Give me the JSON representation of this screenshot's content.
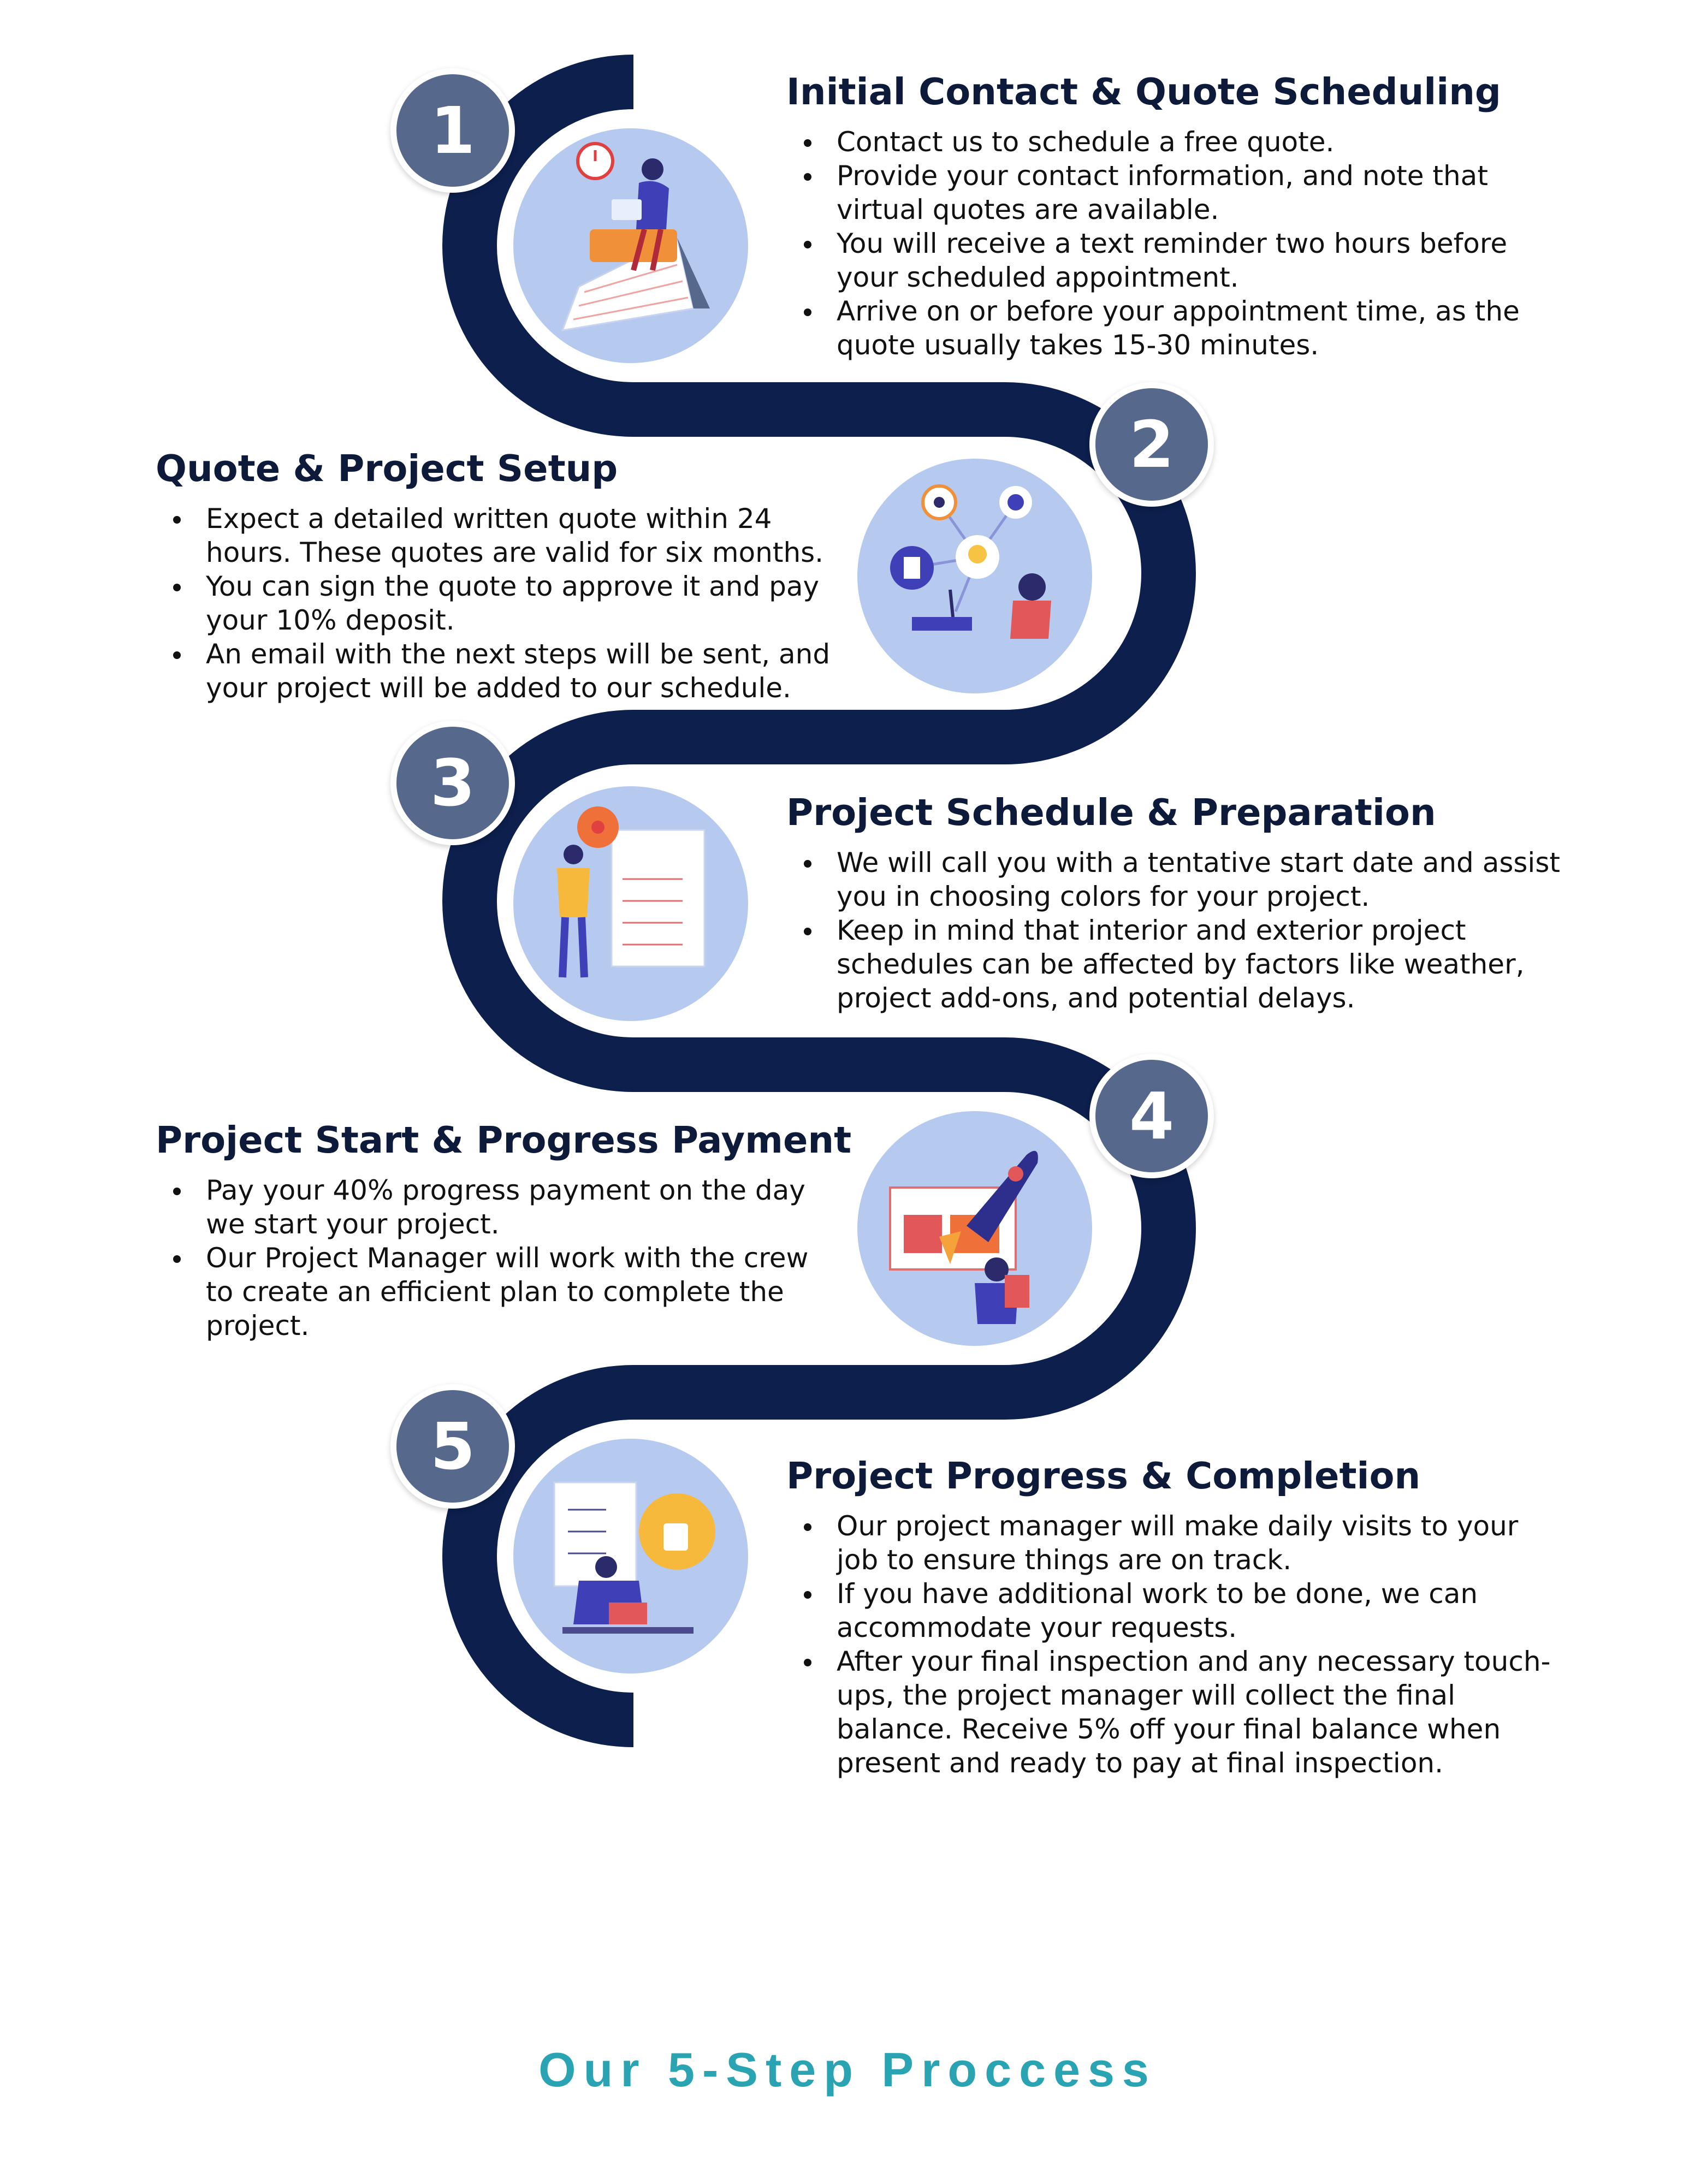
{
  "steps": [
    {
      "number": "1",
      "title": "Initial Contact & Quote Scheduling",
      "bullets": [
        "Contact us to schedule a free quote.",
        "Provide your contact information, and note that virtual quotes are available.",
        "You will receive a text reminder two hours before your scheduled appointment.",
        "Arrive on or before your appointment time, as the quote usually takes 15-30 minutes."
      ]
    },
    {
      "number": "2",
      "title": "Quote & Project Setup",
      "bullets": [
        "Expect a detailed written quote within 24 hours. These quotes are valid for six months.",
        "You can sign the quote to approve it and pay your 10% deposit.",
        "An email with the next steps will be sent, and your project will be added to our schedule."
      ]
    },
    {
      "number": "3",
      "title": "Project Schedule & Preparation",
      "bullets": [
        "We will call you with a tentative start date and assist you in choosing colors for your project.",
        "Keep in mind that interior and exterior project schedules can be affected by factors like weather, project add-ons, and potential delays."
      ]
    },
    {
      "number": "4",
      "title": "Project Start & Progress Payment",
      "bullets": [
        "Pay your 40% progress payment on the day we start your project.",
        "Our Project Manager will work with the crew to create an efficient plan to complete the project."
      ]
    },
    {
      "number": "5",
      "title": "Project Progress & Completion",
      "bullets": [
        "Our project manager will make daily visits to your job to ensure things are on track.",
        "If you have additional work to be done, we can accommodate your requests.",
        "After your final inspection and any necessary touch-ups, the project manager will collect the final balance. Receive 5% off your final balance when present and ready to pay at final inspection."
      ]
    }
  ],
  "footer_title": "Our 5-Step Proccess",
  "colors": {
    "path": "#0c1f4d",
    "badge": "#56688c",
    "illustration_bg": "#b6c9ef",
    "footer": "#2aa3b2",
    "accent_orange": "#f0703a",
    "accent_purple": "#3f3fb8"
  },
  "icons": [
    "calendar-clock-person-illustration",
    "idea-network-person-illustration",
    "checklist-target-person-illustration",
    "rocket-launch-illustration",
    "thumbs-up-checklist-illustration"
  ]
}
